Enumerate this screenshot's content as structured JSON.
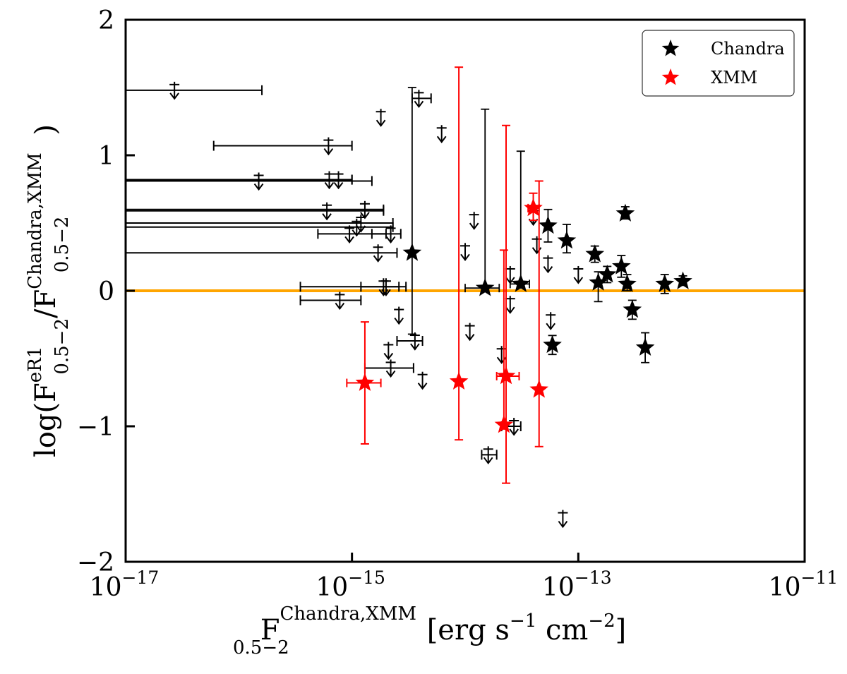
{
  "chart_data": {
    "type": "scatter",
    "x_scale": "log",
    "xlim": [
      1e-17,
      1e-11
    ],
    "ylim": [
      -2,
      2
    ],
    "x_ticks": [
      {
        "value": 1e-17,
        "base": "10",
        "exp": "−17"
      },
      {
        "value": 1e-15,
        "base": "10",
        "exp": "−15"
      },
      {
        "value": 1e-13,
        "base": "10",
        "exp": "−13"
      },
      {
        "value": 1e-11,
        "base": "10",
        "exp": "−11"
      }
    ],
    "y_ticks": [
      {
        "value": 2,
        "label": "2"
      },
      {
        "value": 1,
        "label": "1"
      },
      {
        "value": 0,
        "label": "0"
      },
      {
        "value": -1,
        "label": "−1"
      },
      {
        "value": -2,
        "label": "−2"
      }
    ],
    "xlabel": {
      "main": "F",
      "sup": "Chandra,XMM",
      "sub": "0.5−2",
      "units_prefix": "[erg s",
      "exp1": "−1",
      "units_mid": " cm",
      "exp2": "−2",
      "units_suffix": "]"
    },
    "ylabel": {
      "prefix": "log(F",
      "sup1": "eR1",
      "sub1": "0.5−2",
      "slash": "/F",
      "sup2": "Chandra,XMM",
      "sub2": "0.5−2",
      "suffix": ")"
    },
    "reference_line": {
      "y": 0,
      "color": "#ffa500"
    },
    "legend": {
      "position": "top-right",
      "entries": [
        {
          "label": "Chandra",
          "color": "#000000"
        },
        {
          "label": "XMM",
          "color": "#ff0000"
        }
      ]
    },
    "series": [
      {
        "name": "Chandra",
        "color": "#000000",
        "detections": [
          {
            "x": 3.4e-15,
            "y": 0.28,
            "ylo": -0.32,
            "yhi": 1.5
          },
          {
            "x": 1.5e-14,
            "y": 0.02,
            "ylo": 0.0,
            "yhi": 1.34,
            "xlo": 1e-14,
            "xhi": 2e-14
          },
          {
            "x": 3.1e-14,
            "y": 0.05,
            "ylo": 0.02,
            "yhi": 1.03,
            "xlo": 2.5e-14,
            "xhi": 3.7e-14
          },
          {
            "x": 5.4e-14,
            "y": 0.48,
            "ylo": 0.36,
            "yhi": 0.6
          },
          {
            "x": 5.9e-14,
            "y": -0.4,
            "ylo": -0.47,
            "yhi": -0.33
          },
          {
            "x": 7.9e-14,
            "y": 0.37,
            "ylo": 0.28,
            "yhi": 0.49
          },
          {
            "x": 1.4e-13,
            "y": 0.27,
            "ylo": 0.21,
            "yhi": 0.33
          },
          {
            "x": 1.5e-13,
            "y": 0.06,
            "ylo": -0.08,
            "yhi": 0.14
          },
          {
            "x": 1.8e-13,
            "y": 0.12,
            "ylo": 0.06,
            "yhi": 0.18
          },
          {
            "x": 2.4e-13,
            "y": 0.18,
            "ylo": 0.1,
            "yhi": 0.26
          },
          {
            "x": 2.6e-13,
            "y": 0.57,
            "ylo": 0.53,
            "yhi": 0.62
          },
          {
            "x": 2.7e-13,
            "y": 0.05,
            "ylo": 0.0,
            "yhi": 0.12
          },
          {
            "x": 3e-13,
            "y": -0.14,
            "ylo": -0.21,
            "yhi": -0.07
          },
          {
            "x": 3.9e-13,
            "y": -0.42,
            "ylo": -0.53,
            "yhi": -0.31
          },
          {
            "x": 5.8e-13,
            "y": 0.05,
            "ylo": -0.02,
            "yhi": 0.12
          },
          {
            "x": 8.4e-13,
            "y": 0.07,
            "ylo": 0.04,
            "yhi": 0.11
          }
        ],
        "upper_limits": [
          {
            "y": 1.48,
            "x": 2.7e-17,
            "xlo": 1e-17,
            "xhi": 1.6e-16
          },
          {
            "y": 1.07,
            "x": 6.2e-16,
            "xlo": 6e-17,
            "xhi": 1e-15
          },
          {
            "y": 0.81,
            "x": 1.5e-16,
            "xlo": 1e-17,
            "xhi": 1.5e-15
          },
          {
            "y": 0.82,
            "x": 6.3e-16,
            "xlo": 1e-17,
            "xhi": 1e-15
          },
          {
            "y": 0.82,
            "x": 7.6e-16,
            "xlo": 1e-17,
            "xhi": 1e-15
          },
          {
            "y": 0.59,
            "x": 6e-16,
            "xlo": 1e-17,
            "xhi": 1.9e-15
          },
          {
            "y": 0.6,
            "x": 1.3e-15,
            "xlo": 1e-17,
            "xhi": 1.9e-15
          },
          {
            "y": 0.5,
            "x": 1.2e-15,
            "xlo": 1e-17,
            "xhi": 2.3e-15
          },
          {
            "y": 0.47,
            "x": 1.1e-15,
            "xlo": 1e-17,
            "xhi": 2.3e-15
          },
          {
            "y": 0.28,
            "x": 1.7e-15,
            "xlo": 1e-17,
            "xhi": 2.5e-15
          },
          {
            "y": 0.42,
            "x": 9.5e-16,
            "xlo": 5e-16,
            "xhi": 2e-15
          },
          {
            "y": 0.42,
            "x": 2.2e-15,
            "xlo": 1.5e-15,
            "xhi": 2.7e-15
          },
          {
            "y": 0.03,
            "x": 1.9e-15,
            "xlo": 1.2e-15,
            "xhi": 2.6e-15
          },
          {
            "y": 0.03,
            "x": 2e-15,
            "xlo": 3.5e-16,
            "xhi": 3e-15
          },
          {
            "y": -0.07,
            "x": 7.8e-16,
            "xlo": 3.5e-16,
            "xhi": 1.2e-15
          },
          {
            "y": 1.28,
            "x": 1.8e-15
          },
          {
            "y": 1.42,
            "x": 3.9e-15,
            "xlo": 3.4e-15,
            "xhi": 5e-15
          },
          {
            "y": 1.16,
            "x": 6.2e-15
          },
          {
            "y": -0.18,
            "x": 2.6e-15
          },
          {
            "y": -0.37,
            "x": 3.6e-15,
            "xlo": 2.5e-15,
            "xhi": 4.2e-15
          },
          {
            "y": -0.44,
            "x": 2.1e-15
          },
          {
            "y": -0.57,
            "x": 2.2e-15,
            "xlo": 1.3e-15,
            "xhi": 3.5e-15
          },
          {
            "y": -0.66,
            "x": 4.2e-15
          },
          {
            "y": 0.52,
            "x": 1.2e-14
          },
          {
            "y": 0.29,
            "x": 1e-14
          },
          {
            "y": -0.3,
            "x": 1.1e-14
          },
          {
            "y": -1.21,
            "x": 1.6e-14,
            "xlo": 1.4e-14,
            "xhi": 1.9e-14
          },
          {
            "y": -0.47,
            "x": 2.1e-14
          },
          {
            "y": 0.12,
            "x": 2.5e-14
          },
          {
            "y": -0.1,
            "x": 2.5e-14
          },
          {
            "y": -1.0,
            "x": 2.7e-14,
            "xlo": 2.1e-14,
            "xhi": 3.1e-14
          },
          {
            "y": 0.55,
            "x": 4e-14
          },
          {
            "y": 0.34,
            "x": 4.3e-14
          },
          {
            "y": 0.2,
            "x": 5.4e-14
          },
          {
            "y": -0.22,
            "x": 5.7e-14
          },
          {
            "y": 0.12,
            "x": 1e-13
          },
          {
            "y": -1.68,
            "x": 7.3e-14
          }
        ]
      },
      {
        "name": "XMM",
        "color": "#ff0000",
        "detections": [
          {
            "x": 1.3e-15,
            "y": -0.68,
            "ylo": -1.13,
            "yhi": -0.23,
            "xlo": 9e-16,
            "xhi": 1.8e-15
          },
          {
            "x": 8.8e-15,
            "y": -0.67,
            "ylo": -1.1,
            "yhi": 1.65
          },
          {
            "x": 2.2e-14,
            "y": -0.99,
            "ylo": -1.02,
            "yhi": 0.3
          },
          {
            "x": 2.3e-14,
            "y": -0.63,
            "ylo": -1.42,
            "yhi": 1.22,
            "xlo": 1.9e-14,
            "xhi": 3e-14
          },
          {
            "x": 4e-14,
            "y": 0.61,
            "ylo": 0.52,
            "yhi": 0.72,
            "xlo": 3.6e-14,
            "xhi": 4.5e-14
          },
          {
            "x": 4.5e-14,
            "y": -0.73,
            "ylo": -1.15,
            "yhi": 0.81
          }
        ]
      }
    ]
  }
}
